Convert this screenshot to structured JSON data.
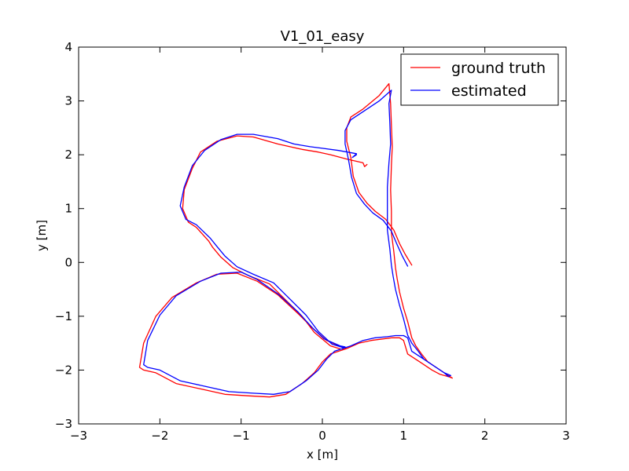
{
  "chart_data": {
    "type": "line",
    "title": "V1_01_easy",
    "xlabel": "x [m]",
    "ylabel": "y [m]",
    "xlim": [
      -3,
      3
    ],
    "ylim": [
      -3,
      4
    ],
    "xticks": [
      -3,
      -2,
      -1,
      0,
      1,
      2,
      3
    ],
    "yticks": [
      -3,
      -2,
      -1,
      0,
      1,
      2,
      3,
      4
    ],
    "xtick_labels": [
      "−3",
      "−2",
      "−1",
      "0",
      "1",
      "2",
      "3"
    ],
    "ytick_labels": [
      "−3",
      "−2",
      "−1",
      "0",
      "1",
      "2",
      "3",
      "4"
    ],
    "grid": false,
    "legend_position": "top-right",
    "series": [
      {
        "name": "ground truth",
        "color": "#ff0000",
        "x": [
          0.55,
          0.52,
          0.5,
          0.3,
          0.1,
          -0.05,
          -0.25,
          -0.55,
          -0.85,
          -1.05,
          -1.3,
          -1.5,
          -1.6,
          -1.7,
          -1.72,
          -1.65,
          -1.55,
          -1.4,
          -1.35,
          -1.25,
          -1.1,
          -0.9,
          -0.65,
          -0.45,
          -0.25,
          -0.1,
          0.1,
          0.25,
          0.3,
          0.25,
          0.05,
          -0.1,
          -0.3,
          -0.55,
          -0.8,
          -1.05,
          -1.3,
          -1.55,
          -1.85,
          -2.05,
          -2.2,
          -2.25,
          -2.2,
          -2.05,
          -1.8,
          -1.5,
          -1.2,
          -0.9,
          -0.65,
          -0.45,
          -0.25,
          -0.1,
          0.0,
          0.1,
          0.3,
          0.45,
          0.6,
          0.75,
          0.85,
          0.95,
          1.0,
          1.02,
          1.05,
          1.2,
          1.35,
          1.45,
          1.55,
          1.6,
          1.55,
          1.4,
          1.3,
          1.22,
          1.15,
          1.1,
          1.05,
          1.0,
          0.95,
          0.92,
          0.9,
          0.88,
          0.85,
          0.85,
          0.84,
          0.85,
          0.86,
          0.85,
          0.84,
          0.82,
          0.7,
          0.5,
          0.35,
          0.3,
          0.3,
          0.35,
          0.38,
          0.45,
          0.55,
          0.65,
          0.78,
          0.88,
          0.95,
          1.02,
          1.1,
          1.1
        ],
        "y": [
          1.82,
          1.78,
          1.85,
          1.92,
          2.0,
          2.05,
          2.1,
          2.2,
          2.33,
          2.35,
          2.25,
          2.05,
          1.75,
          1.35,
          1.0,
          0.75,
          0.65,
          0.4,
          0.28,
          0.1,
          -0.1,
          -0.25,
          -0.4,
          -0.7,
          -1.0,
          -1.3,
          -1.55,
          -1.62,
          -1.6,
          -1.58,
          -1.45,
          -1.25,
          -0.95,
          -0.6,
          -0.35,
          -0.2,
          -0.22,
          -0.38,
          -0.65,
          -1.0,
          -1.5,
          -1.95,
          -2.0,
          -2.05,
          -2.25,
          -2.35,
          -2.45,
          -2.48,
          -2.5,
          -2.45,
          -2.25,
          -2.05,
          -1.85,
          -1.7,
          -1.6,
          -1.5,
          -1.45,
          -1.42,
          -1.4,
          -1.4,
          -1.45,
          -1.55,
          -1.7,
          -1.85,
          -2.0,
          -2.08,
          -2.12,
          -2.15,
          -2.1,
          -1.95,
          -1.85,
          -1.7,
          -1.55,
          -1.4,
          -1.1,
          -0.85,
          -0.55,
          -0.3,
          -0.1,
          0.2,
          0.55,
          0.95,
          1.35,
          1.8,
          2.15,
          2.55,
          2.95,
          3.32,
          3.1,
          2.85,
          2.7,
          2.5,
          2.25,
          1.95,
          1.6,
          1.3,
          1.1,
          0.95,
          0.8,
          0.6,
          0.35,
          0.15,
          -0.05,
          -0.05
        ]
      },
      {
        "name": "estimated",
        "color": "#0000ff",
        "x": [
          0.42,
          0.37,
          0.42,
          0.2,
          0.0,
          -0.15,
          -0.35,
          -0.55,
          -0.85,
          -1.05,
          -1.25,
          -1.45,
          -1.6,
          -1.7,
          -1.75,
          -1.68,
          -1.55,
          -1.38,
          -1.3,
          -1.2,
          -1.05,
          -0.85,
          -0.6,
          -0.4,
          -0.2,
          -0.05,
          0.12,
          0.25,
          0.28,
          0.22,
          0.02,
          -0.12,
          -0.3,
          -0.55,
          -0.8,
          -1.0,
          -1.25,
          -1.5,
          -1.8,
          -2.0,
          -2.15,
          -2.2,
          -2.15,
          -2.0,
          -1.75,
          -1.45,
          -1.15,
          -0.85,
          -0.6,
          -0.4,
          -0.2,
          -0.05,
          0.05,
          0.15,
          0.35,
          0.5,
          0.65,
          0.8,
          0.9,
          1.0,
          1.05,
          1.07,
          1.1,
          1.25,
          1.4,
          1.5,
          1.58,
          1.55,
          1.5,
          1.35,
          1.25,
          1.18,
          1.1,
          1.05,
          1.0,
          0.95,
          0.9,
          0.87,
          0.85,
          0.83,
          0.8,
          0.8,
          0.8,
          0.82,
          0.84,
          0.83,
          0.82,
          0.85,
          0.7,
          0.5,
          0.35,
          0.28,
          0.28,
          0.32,
          0.36,
          0.42,
          0.52,
          0.62,
          0.75,
          0.85,
          0.92,
          0.98,
          1.05,
          1.05
        ],
        "y": [
          2.0,
          1.95,
          2.02,
          2.08,
          2.12,
          2.15,
          2.2,
          2.3,
          2.38,
          2.38,
          2.28,
          2.08,
          1.8,
          1.4,
          1.05,
          0.8,
          0.7,
          0.45,
          0.3,
          0.12,
          -0.08,
          -0.22,
          -0.38,
          -0.68,
          -0.98,
          -1.28,
          -1.52,
          -1.58,
          -1.57,
          -1.55,
          -1.42,
          -1.22,
          -0.92,
          -0.58,
          -0.32,
          -0.18,
          -0.2,
          -0.35,
          -0.62,
          -0.98,
          -1.45,
          -1.9,
          -1.95,
          -2.0,
          -2.2,
          -2.3,
          -2.4,
          -2.43,
          -2.45,
          -2.4,
          -2.2,
          -2.0,
          -1.8,
          -1.65,
          -1.55,
          -1.45,
          -1.4,
          -1.38,
          -1.36,
          -1.36,
          -1.4,
          -1.5,
          -1.65,
          -1.8,
          -1.95,
          -2.05,
          -2.1,
          -2.12,
          -2.05,
          -1.9,
          -1.8,
          -1.65,
          -1.5,
          -1.35,
          -1.05,
          -0.8,
          -0.5,
          -0.25,
          -0.05,
          0.25,
          0.6,
          1.0,
          1.4,
          1.85,
          2.2,
          2.6,
          2.95,
          3.2,
          3.0,
          2.8,
          2.65,
          2.45,
          2.2,
          1.92,
          1.58,
          1.28,
          1.08,
          0.92,
          0.78,
          0.58,
          0.33,
          0.13,
          -0.07,
          -0.07
        ]
      }
    ]
  }
}
